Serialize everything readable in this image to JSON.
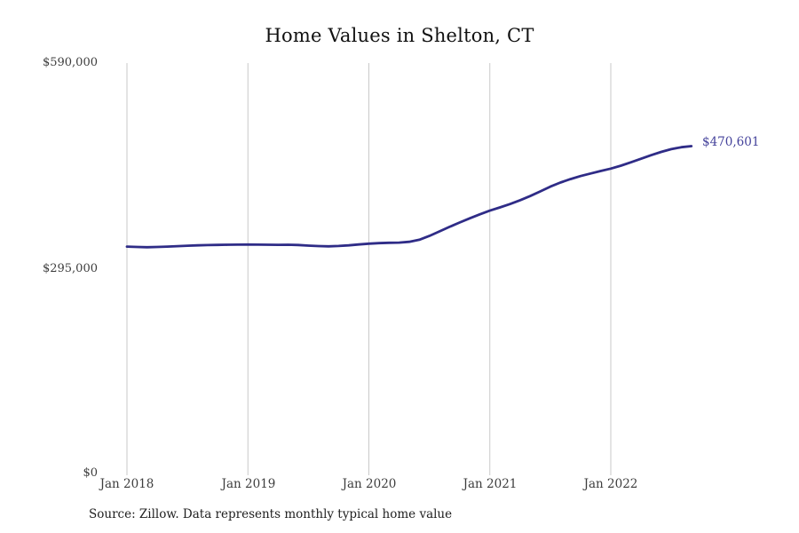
{
  "title": "Home Values in Shelton, CT",
  "source_note": "Source: Zillow. Data represents monthly typical home value",
  "end_label": "$470,601",
  "colors": {
    "line": "#2f2c87",
    "end_label": "#44429b",
    "gridline": "#c9c9c9",
    "axis_text": "#3d3d3d",
    "title_text": "#111111"
  },
  "chart_data": {
    "type": "line",
    "title": "Home Values in Shelton, CT",
    "xlabel": "",
    "ylabel": "",
    "ylim": [
      0,
      590000
    ],
    "grid": "vertical-only",
    "legend": "none",
    "end_annotation": "$470,601",
    "final_value": 470601,
    "y_ticks": [
      {
        "value": 0,
        "label": "$0"
      },
      {
        "value": 295000,
        "label": "$295,000"
      },
      {
        "value": 590000,
        "label": "$590,000"
      }
    ],
    "x_ticks": [
      {
        "index": 0,
        "label": "Jan 2018"
      },
      {
        "index": 12,
        "label": "Jan 2019"
      },
      {
        "index": 24,
        "label": "Jan 2020"
      },
      {
        "index": 36,
        "label": "Jan 2021"
      },
      {
        "index": 48,
        "label": "Jan 2022"
      }
    ],
    "x": [
      "2018-01",
      "2018-02",
      "2018-03",
      "2018-04",
      "2018-05",
      "2018-06",
      "2018-07",
      "2018-08",
      "2018-09",
      "2018-10",
      "2018-11",
      "2018-12",
      "2019-01",
      "2019-02",
      "2019-03",
      "2019-04",
      "2019-05",
      "2019-06",
      "2019-07",
      "2019-08",
      "2019-09",
      "2019-10",
      "2019-11",
      "2019-12",
      "2020-01",
      "2020-02",
      "2020-03",
      "2020-04",
      "2020-05",
      "2020-06",
      "2020-07",
      "2020-08",
      "2020-09",
      "2020-10",
      "2020-11",
      "2020-12",
      "2021-01",
      "2021-02",
      "2021-03",
      "2021-04",
      "2021-05",
      "2021-06",
      "2021-07",
      "2021-08",
      "2021-09",
      "2021-10",
      "2021-11",
      "2021-12",
      "2022-01",
      "2022-02",
      "2022-03",
      "2022-04",
      "2022-05",
      "2022-06",
      "2022-07",
      "2022-08",
      "2022-09"
    ],
    "values": [
      326200,
      325700,
      325300,
      325600,
      326100,
      326800,
      327400,
      327900,
      328300,
      328600,
      328800,
      329000,
      329100,
      329000,
      328800,
      328700,
      328800,
      328400,
      327600,
      326900,
      326600,
      327000,
      328000,
      329200,
      330400,
      331200,
      331600,
      331900,
      333000,
      336000,
      341500,
      348000,
      354500,
      360800,
      366800,
      372500,
      377900,
      382500,
      387300,
      392800,
      398800,
      405500,
      412300,
      418200,
      423200,
      427500,
      431200,
      434800,
      438300,
      442500,
      447300,
      452400,
      457600,
      462300,
      466200,
      469100,
      470601
    ]
  }
}
